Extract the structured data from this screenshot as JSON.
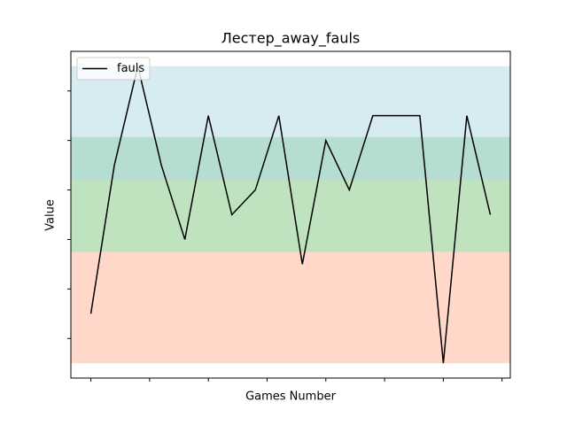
{
  "chart_data": {
    "type": "line",
    "title": "Лестер_away_fauls",
    "xlabel": "Games Number",
    "ylabel": "Value",
    "x": [
      0,
      1,
      2,
      3,
      4,
      5,
      6,
      7,
      8,
      9,
      10,
      11,
      12,
      13,
      14,
      15,
      16,
      17
    ],
    "series": [
      {
        "name": "fauls",
        "color": "#000000",
        "values": [
          5,
          11,
          15,
          11,
          8,
          13,
          9,
          10,
          13,
          7,
          12,
          10,
          13,
          13,
          13,
          3,
          13,
          9
        ]
      }
    ],
    "xlim": [
      -0.85,
      17.85
    ],
    "xticks": [
      0,
      2.5,
      5,
      7.5,
      10,
      12.5,
      15,
      17.5
    ],
    "ylim": [
      2.4,
      15.6
    ],
    "yticks": [
      4,
      6,
      8,
      10,
      12,
      14
    ],
    "bands": [
      {
        "from": 3,
        "to": 7.5,
        "color": "#ff7f50",
        "opacity": 0.3
      },
      {
        "from": 7.5,
        "to": 12.14,
        "color": "#2ca02c",
        "opacity": 0.3
      },
      {
        "from": 10.43,
        "to": 15,
        "color": "#add8e6",
        "opacity": 0.5
      }
    ],
    "legend": "upper left"
  }
}
